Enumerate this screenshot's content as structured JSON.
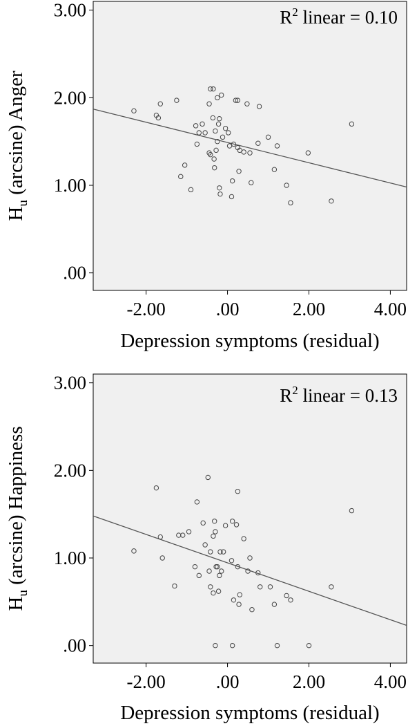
{
  "chart_data": [
    {
      "type": "scatter",
      "xlabel": "Depression symptoms (residual)",
      "ylabel_main": "H",
      "ylabel_sub": "u",
      "ylabel_rest": " (arcsine) Anger",
      "annotation": {
        "prefix": "R",
        "sup": "2",
        "text": " linear = 0.10"
      },
      "xlim": [
        -3.3,
        4.4
      ],
      "ylim": [
        -0.2,
        3.1
      ],
      "x_ticks": [
        -2,
        0,
        2,
        4
      ],
      "x_tick_labels": [
        "-2.00",
        ".00",
        "2.00",
        "4.00"
      ],
      "y_ticks": [
        0,
        1,
        2,
        3
      ],
      "y_tick_labels": [
        ".00",
        "1.00",
        "2.00",
        "3.00"
      ],
      "grid": false,
      "fit_line": {
        "x": [
          -3.3,
          4.4
        ],
        "y": [
          1.87,
          0.98
        ]
      },
      "points": [
        [
          -2.3,
          1.85
        ],
        [
          -1.75,
          1.8
        ],
        [
          -1.7,
          1.77
        ],
        [
          -1.65,
          1.93
        ],
        [
          -1.25,
          1.97
        ],
        [
          -1.15,
          1.1
        ],
        [
          -1.05,
          1.23
        ],
        [
          -0.9,
          0.95
        ],
        [
          -0.78,
          1.68
        ],
        [
          -0.75,
          1.47
        ],
        [
          -0.7,
          1.6
        ],
        [
          -0.62,
          1.7
        ],
        [
          -0.55,
          1.6
        ],
        [
          -0.45,
          1.37
        ],
        [
          -0.45,
          1.93
        ],
        [
          -0.42,
          1.35
        ],
        [
          -0.42,
          2.1
        ],
        [
          -0.36,
          1.77
        ],
        [
          -0.35,
          2.1
        ],
        [
          -0.33,
          1.3
        ],
        [
          -0.32,
          1.2
        ],
        [
          -0.3,
          1.62
        ],
        [
          -0.28,
          1.4
        ],
        [
          -0.25,
          1.5
        ],
        [
          -0.25,
          2.0
        ],
        [
          -0.22,
          1.7
        ],
        [
          -0.2,
          0.97
        ],
        [
          -0.18,
          0.9
        ],
        [
          -0.2,
          1.76
        ],
        [
          -0.15,
          2.03
        ],
        [
          -0.12,
          1.55
        ],
        [
          -0.05,
          1.65
        ],
        [
          0.05,
          1.45
        ],
        [
          0.02,
          1.6
        ],
        [
          0.1,
          0.87
        ],
        [
          0.12,
          1.05
        ],
        [
          0.15,
          1.47
        ],
        [
          0.2,
          1.97
        ],
        [
          0.25,
          1.97
        ],
        [
          0.25,
          1.43
        ],
        [
          0.28,
          1.16
        ],
        [
          0.3,
          1.4
        ],
        [
          0.4,
          1.38
        ],
        [
          0.48,
          1.93
        ],
        [
          0.55,
          1.37
        ],
        [
          0.58,
          1.03
        ],
        [
          0.75,
          1.48
        ],
        [
          0.78,
          1.9
        ],
        [
          1.0,
          1.55
        ],
        [
          1.15,
          1.18
        ],
        [
          1.22,
          1.45
        ],
        [
          1.45,
          1.0
        ],
        [
          1.55,
          0.8
        ],
        [
          1.98,
          1.37
        ],
        [
          2.55,
          0.82
        ],
        [
          3.05,
          1.7
        ]
      ]
    },
    {
      "type": "scatter",
      "xlabel": "Depression symptoms (residual)",
      "ylabel_main": "H",
      "ylabel_sub": "u",
      "ylabel_rest": " (arcsine) Happiness",
      "annotation": {
        "prefix": "R",
        "sup": "2",
        "text": " linear = 0.13"
      },
      "xlim": [
        -3.3,
        4.4
      ],
      "ylim": [
        -0.2,
        3.1
      ],
      "x_ticks": [
        -2,
        0,
        2,
        4
      ],
      "x_tick_labels": [
        "-2.00",
        ".00",
        "2.00",
        "4.00"
      ],
      "y_ticks": [
        0,
        1,
        2,
        3
      ],
      "y_tick_labels": [
        ".00",
        "1.00",
        "2.00",
        "3.00"
      ],
      "grid": false,
      "fit_line": {
        "x": [
          -3.3,
          4.4
        ],
        "y": [
          1.48,
          0.23
        ]
      },
      "points": [
        [
          -2.3,
          1.08
        ],
        [
          -1.75,
          1.8
        ],
        [
          -1.65,
          1.24
        ],
        [
          -1.6,
          1.0
        ],
        [
          -1.3,
          0.68
        ],
        [
          -1.2,
          1.26
        ],
        [
          -1.1,
          1.26
        ],
        [
          -0.95,
          1.3
        ],
        [
          -0.8,
          0.9
        ],
        [
          -0.75,
          1.64
        ],
        [
          -0.7,
          0.8
        ],
        [
          -0.6,
          1.4
        ],
        [
          -0.55,
          1.15
        ],
        [
          -0.48,
          1.92
        ],
        [
          -0.45,
          0.85
        ],
        [
          -0.42,
          1.07
        ],
        [
          -0.42,
          0.67
        ],
        [
          -0.35,
          1.25
        ],
        [
          -0.35,
          0.6
        ],
        [
          -0.32,
          1.42
        ],
        [
          -0.3,
          1.3
        ],
        [
          -0.28,
          0.9
        ],
        [
          -0.25,
          0.9
        ],
        [
          -0.22,
          0.62
        ],
        [
          -0.2,
          0.8
        ],
        [
          -0.18,
          1.07
        ],
        [
          -0.15,
          0.85
        ],
        [
          -0.1,
          1.07
        ],
        [
          -0.05,
          1.37
        ],
        [
          -0.3,
          0.0
        ],
        [
          0.1,
          0.97
        ],
        [
          0.12,
          1.42
        ],
        [
          0.15,
          0.52
        ],
        [
          0.22,
          1.38
        ],
        [
          0.25,
          1.76
        ],
        [
          0.25,
          0.9
        ],
        [
          0.3,
          0.58
        ],
        [
          0.28,
          0.47
        ],
        [
          0.4,
          1.22
        ],
        [
          0.5,
          0.85
        ],
        [
          0.55,
          1.0
        ],
        [
          0.6,
          0.41
        ],
        [
          0.75,
          0.83
        ],
        [
          0.8,
          0.67
        ],
        [
          1.05,
          0.67
        ],
        [
          1.15,
          0.47
        ],
        [
          1.22,
          0.0
        ],
        [
          1.45,
          0.57
        ],
        [
          1.55,
          0.52
        ],
        [
          2.0,
          0.0
        ],
        [
          2.55,
          0.67
        ],
        [
          3.05,
          1.54
        ],
        [
          0.12,
          0.0
        ]
      ]
    }
  ]
}
